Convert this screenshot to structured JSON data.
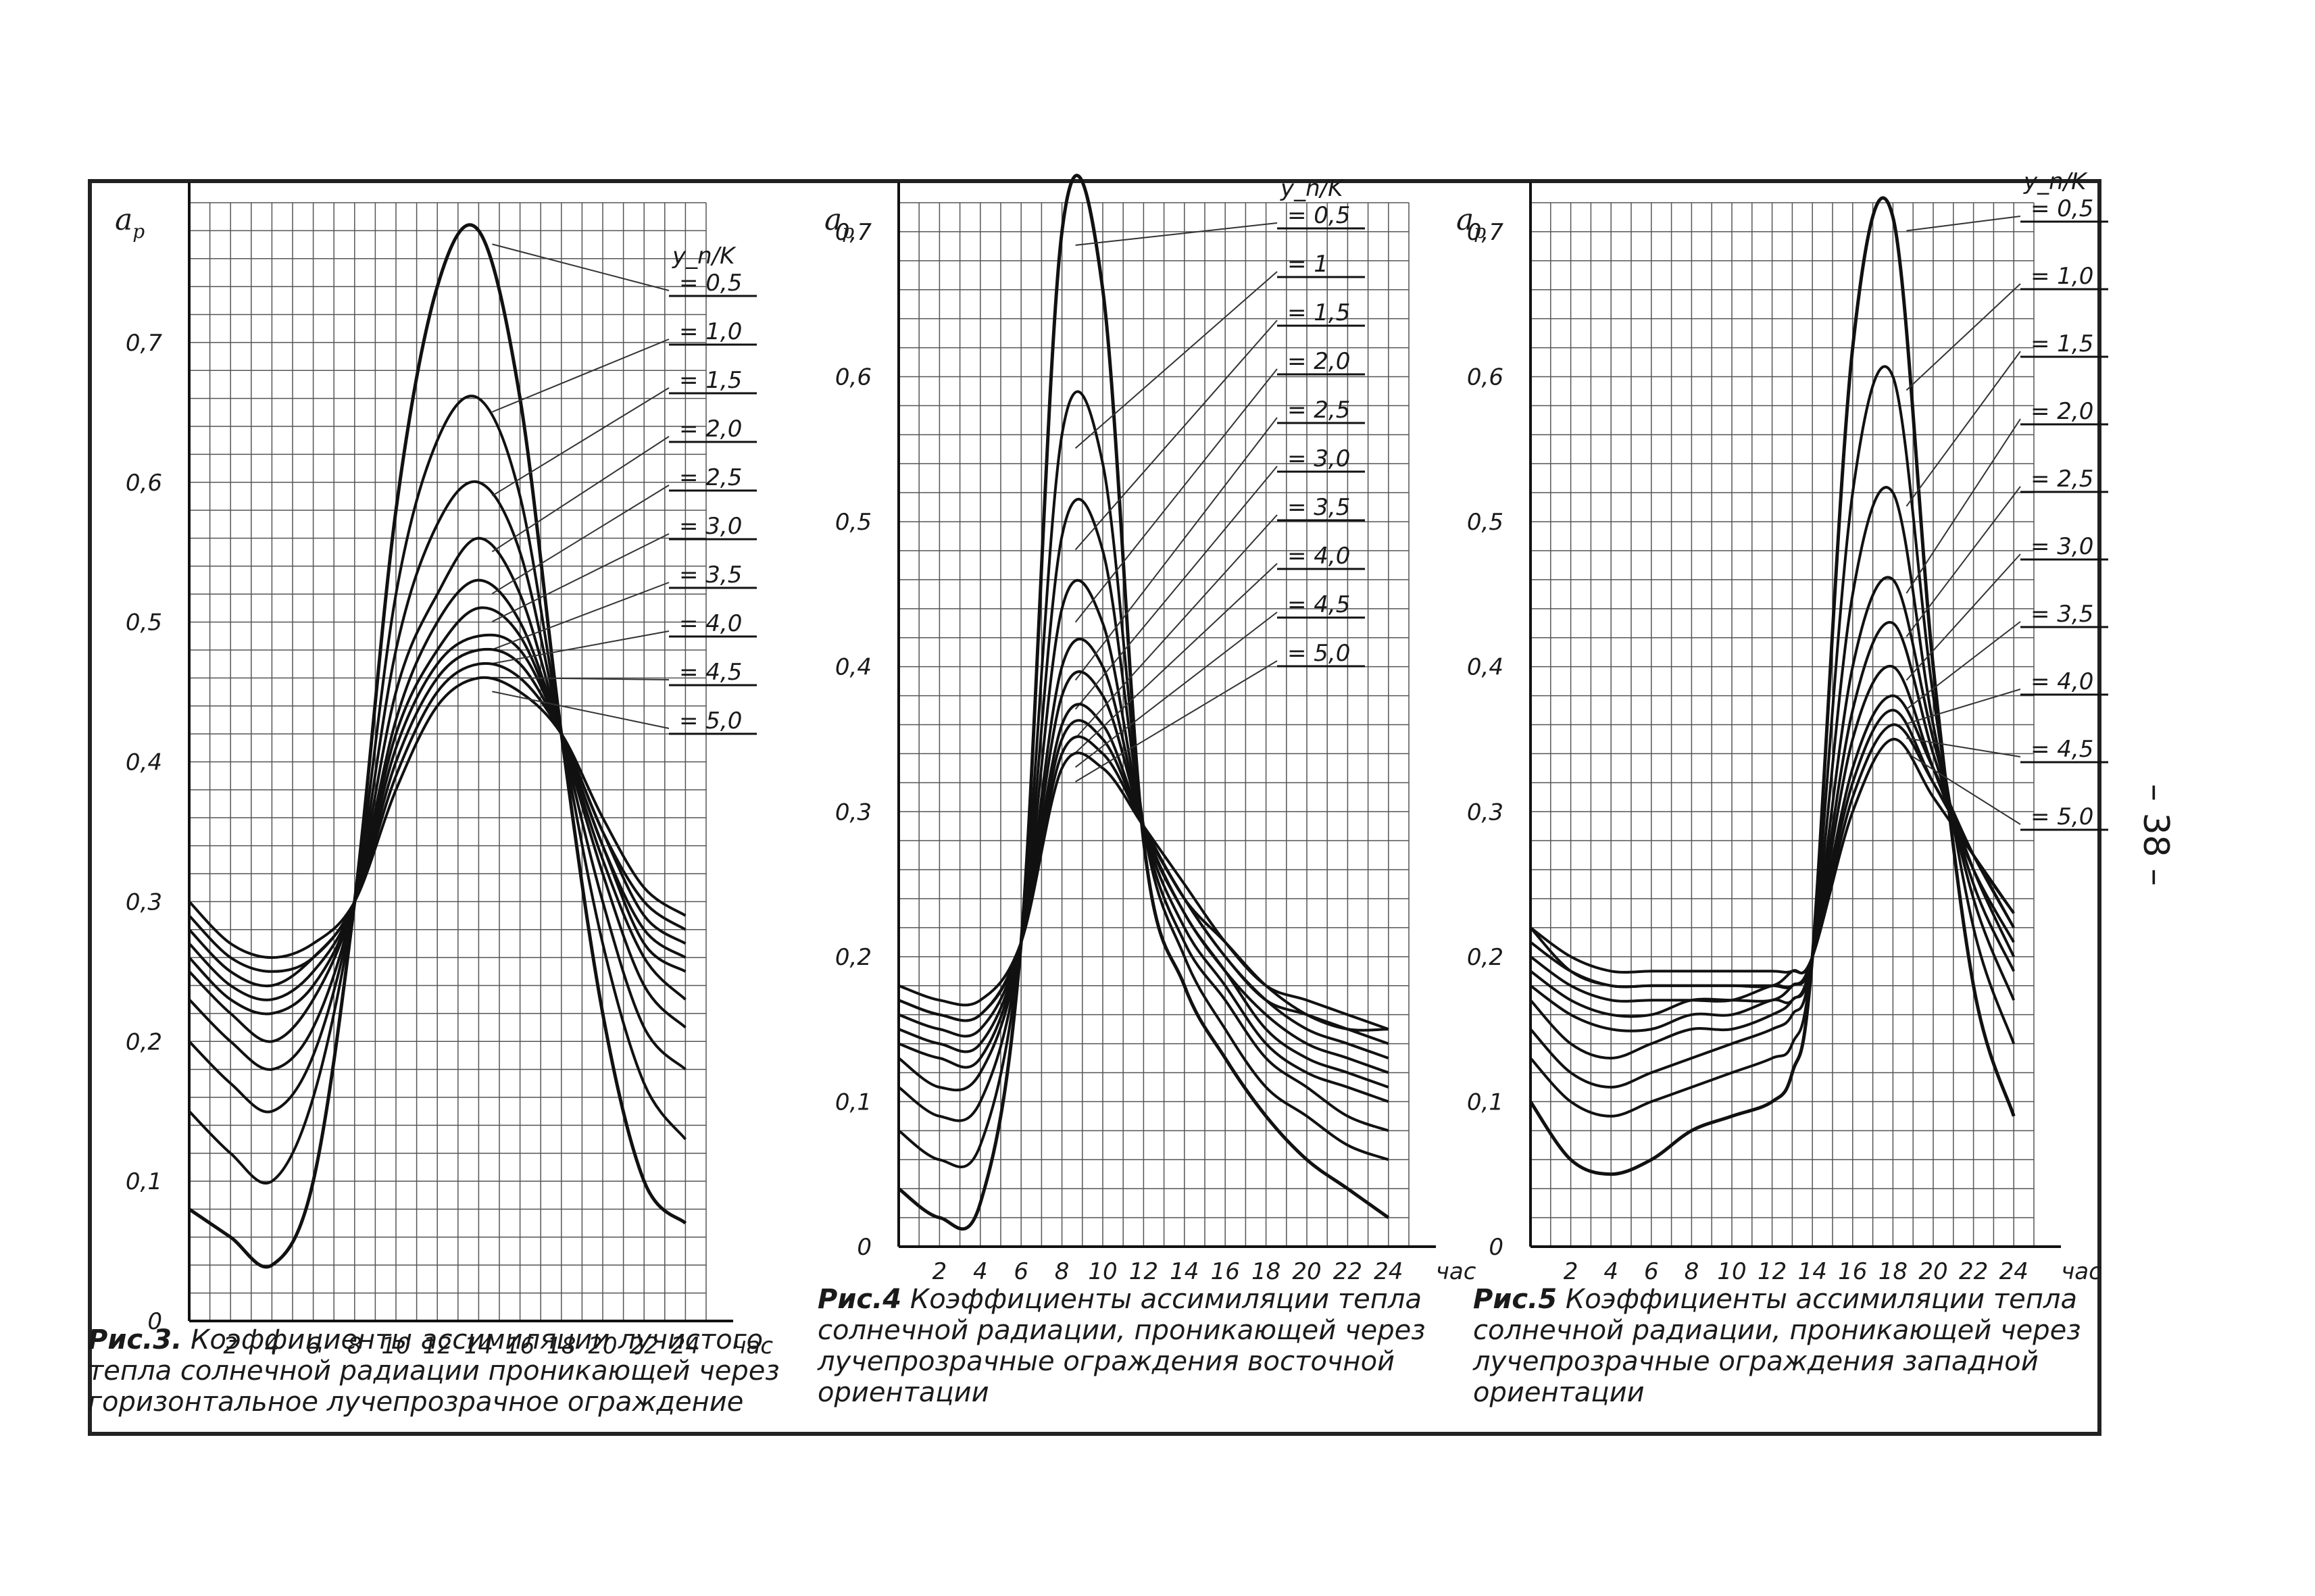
{
  "page_number": "– 38 –",
  "chart_data": [
    {
      "type": "line",
      "figure_label": "Рис.3.",
      "caption": "Коэффициенты ассимиляции лучистого тепла солнечной радиации проникающей через горизонтальное лучепрозрачное ограждение",
      "ylabel": "a_p",
      "xlabel": "час",
      "ylim": [
        0,
        0.8
      ],
      "xlim": [
        0,
        25
      ],
      "xticks": [
        2,
        4,
        6,
        8,
        10,
        12,
        14,
        16,
        18,
        20,
        22,
        24
      ],
      "yticks": [
        0,
        0.1,
        0.2,
        0.3,
        0.4,
        0.5,
        0.6,
        0.7
      ],
      "legend_header": "y_n/K",
      "legend_values": [
        "= 0.5",
        "= 1.0",
        "= 1.5",
        "= 2.0",
        "= 2.5",
        "= 3.0",
        "= 3.5",
        "= 4.0",
        "= 4.5",
        "= 5.0"
      ],
      "x": [
        0,
        2,
        4,
        6,
        8,
        10,
        12,
        14,
        16,
        18,
        20,
        22,
        24
      ],
      "series": [
        {
          "name": "0.5",
          "values": [
            0.08,
            0.06,
            0.04,
            0.1,
            0.3,
            0.58,
            0.74,
            0.78,
            0.66,
            0.42,
            0.22,
            0.1,
            0.07
          ]
        },
        {
          "name": "1.0",
          "values": [
            0.15,
            0.12,
            0.1,
            0.16,
            0.3,
            0.52,
            0.63,
            0.66,
            0.59,
            0.42,
            0.27,
            0.17,
            0.13
          ]
        },
        {
          "name": "1.5",
          "values": [
            0.2,
            0.17,
            0.15,
            0.19,
            0.3,
            0.48,
            0.57,
            0.6,
            0.55,
            0.42,
            0.3,
            0.21,
            0.18
          ]
        },
        {
          "name": "2.0",
          "values": [
            0.23,
            0.2,
            0.18,
            0.21,
            0.3,
            0.45,
            0.52,
            0.56,
            0.52,
            0.42,
            0.32,
            0.24,
            0.21
          ]
        },
        {
          "name": "2.5",
          "values": [
            0.25,
            0.22,
            0.2,
            0.23,
            0.3,
            0.43,
            0.5,
            0.53,
            0.5,
            0.42,
            0.33,
            0.26,
            0.23
          ]
        },
        {
          "name": "3.0",
          "values": [
            0.26,
            0.23,
            0.22,
            0.24,
            0.3,
            0.42,
            0.48,
            0.51,
            0.49,
            0.42,
            0.34,
            0.27,
            0.25
          ]
        },
        {
          "name": "3.5",
          "values": [
            0.27,
            0.24,
            0.23,
            0.25,
            0.3,
            0.41,
            0.47,
            0.49,
            0.48,
            0.42,
            0.34,
            0.28,
            0.26
          ]
        },
        {
          "name": "4.0",
          "values": [
            0.28,
            0.25,
            0.24,
            0.26,
            0.3,
            0.4,
            0.46,
            0.48,
            0.47,
            0.42,
            0.35,
            0.29,
            0.27
          ]
        },
        {
          "name": "4.5",
          "values": [
            0.29,
            0.26,
            0.25,
            0.26,
            0.3,
            0.39,
            0.45,
            0.47,
            0.46,
            0.42,
            0.35,
            0.3,
            0.28
          ]
        },
        {
          "name": "5.0",
          "values": [
            0.3,
            0.27,
            0.26,
            0.27,
            0.3,
            0.38,
            0.44,
            0.46,
            0.45,
            0.42,
            0.36,
            0.31,
            0.29
          ]
        }
      ]
    },
    {
      "type": "line",
      "figure_label": "Рис.4",
      "caption": "Коэффициенты ассимиляции тепла солнечной радиации, проникающей через лучепрозрачные ограждения восточной ориентации",
      "ylabel": "a_p",
      "xlabel": "час",
      "ylim": [
        0,
        0.72
      ],
      "xlim": [
        0,
        25
      ],
      "xticks": [
        2,
        4,
        6,
        8,
        10,
        12,
        14,
        16,
        18,
        20,
        22,
        24
      ],
      "yticks": [
        0,
        0.1,
        0.2,
        0.3,
        0.4,
        0.5,
        0.6,
        0.7
      ],
      "legend_header": "y_n/K",
      "legend_values": [
        "= 0.5",
        "= 1",
        "= 1.5",
        "= 2.0",
        "= 2.5",
        "= 3.0",
        "= 3.5",
        "= 4.0",
        "= 4.5",
        "= 5.0"
      ],
      "x": [
        0,
        2,
        4,
        6,
        8,
        10,
        12,
        14,
        16,
        18,
        20,
        22,
        24
      ],
      "series": [
        {
          "name": "0.5",
          "values": [
            0.04,
            0.02,
            0.03,
            0.21,
            0.7,
            0.66,
            0.28,
            0.18,
            0.13,
            0.09,
            0.06,
            0.04,
            0.02
          ]
        },
        {
          "name": "1",
          "values": [
            0.08,
            0.06,
            0.07,
            0.21,
            0.56,
            0.54,
            0.29,
            0.2,
            0.15,
            0.11,
            0.09,
            0.07,
            0.06
          ]
        },
        {
          "name": "1.5",
          "values": [
            0.11,
            0.09,
            0.1,
            0.21,
            0.49,
            0.48,
            0.29,
            0.21,
            0.17,
            0.13,
            0.11,
            0.09,
            0.08
          ]
        },
        {
          "name": "2.0",
          "values": [
            0.13,
            0.11,
            0.12,
            0.21,
            0.44,
            0.43,
            0.29,
            0.22,
            0.18,
            0.14,
            0.12,
            0.11,
            0.1
          ]
        },
        {
          "name": "2.5",
          "values": [
            0.14,
            0.13,
            0.13,
            0.21,
            0.4,
            0.4,
            0.29,
            0.23,
            0.19,
            0.15,
            0.13,
            0.12,
            0.11
          ]
        },
        {
          "name": "3.0",
          "values": [
            0.15,
            0.14,
            0.14,
            0.21,
            0.38,
            0.38,
            0.29,
            0.23,
            0.19,
            0.16,
            0.14,
            0.13,
            0.12
          ]
        },
        {
          "name": "3.5",
          "values": [
            0.16,
            0.15,
            0.15,
            0.21,
            0.36,
            0.36,
            0.29,
            0.24,
            0.2,
            0.17,
            0.15,
            0.14,
            0.13
          ]
        },
        {
          "name": "4.0",
          "values": [
            0.17,
            0.16,
            0.16,
            0.21,
            0.35,
            0.35,
            0.29,
            0.24,
            0.2,
            0.17,
            0.16,
            0.15,
            0.14
          ]
        },
        {
          "name": "4.5",
          "values": [
            0.17,
            0.16,
            0.16,
            0.21,
            0.34,
            0.34,
            0.29,
            0.24,
            0.21,
            0.18,
            0.16,
            0.15,
            0.15
          ]
        },
        {
          "name": "5.0",
          "values": [
            0.18,
            0.17,
            0.17,
            0.21,
            0.33,
            0.33,
            0.29,
            0.25,
            0.21,
            0.18,
            0.17,
            0.16,
            0.15
          ]
        }
      ]
    },
    {
      "type": "line",
      "figure_label": "Рис.5",
      "caption": "Коэффициенты ассимиляции тепла солнечной радиации, проникающей через лучепрозрачные ограждения западной ориентации",
      "ylabel": "a_p",
      "xlabel": "час",
      "ylim": [
        0,
        0.72
      ],
      "xlim": [
        0,
        25
      ],
      "xticks": [
        2,
        4,
        6,
        8,
        10,
        12,
        14,
        16,
        18,
        20,
        22,
        24
      ],
      "yticks": [
        0,
        0.1,
        0.2,
        0.3,
        0.4,
        0.5,
        0.6,
        0.7
      ],
      "legend_header": "y_n/K",
      "legend_values": [
        "= 0.5",
        "= 1.0",
        "= 1.5",
        "= 2.0",
        "= 2.5",
        "= 3.0",
        "= 3.5",
        "= 4.0",
        "= 4.5",
        "= 5.0"
      ],
      "x": [
        0,
        2,
        4,
        6,
        8,
        10,
        12,
        13,
        14,
        16,
        18,
        20,
        22,
        24
      ],
      "series": [
        {
          "name": "0.5",
          "values": [
            0.1,
            0.06,
            0.05,
            0.06,
            0.08,
            0.09,
            0.1,
            0.12,
            0.2,
            0.62,
            0.71,
            0.4,
            0.18,
            0.09
          ]
        },
        {
          "name": "1.0",
          "values": [
            0.13,
            0.1,
            0.09,
            0.1,
            0.11,
            0.12,
            0.13,
            0.14,
            0.2,
            0.52,
            0.6,
            0.38,
            0.22,
            0.14
          ]
        },
        {
          "name": "1.5",
          "values": [
            0.15,
            0.12,
            0.11,
            0.12,
            0.13,
            0.14,
            0.15,
            0.16,
            0.2,
            0.45,
            0.52,
            0.36,
            0.24,
            0.17
          ]
        },
        {
          "name": "2.0",
          "values": [
            0.17,
            0.14,
            0.13,
            0.14,
            0.15,
            0.15,
            0.16,
            0.17,
            0.2,
            0.4,
            0.46,
            0.35,
            0.25,
            0.19
          ]
        },
        {
          "name": "2.5",
          "values": [
            0.18,
            0.16,
            0.15,
            0.15,
            0.16,
            0.16,
            0.17,
            0.17,
            0.2,
            0.37,
            0.43,
            0.34,
            0.26,
            0.2
          ]
        },
        {
          "name": "3.0",
          "values": [
            0.19,
            0.17,
            0.16,
            0.16,
            0.17,
            0.17,
            0.17,
            0.18,
            0.2,
            0.35,
            0.4,
            0.33,
            0.26,
            0.21
          ]
        },
        {
          "name": "3.5",
          "values": [
            0.2,
            0.18,
            0.17,
            0.17,
            0.17,
            0.17,
            0.18,
            0.18,
            0.2,
            0.33,
            0.38,
            0.33,
            0.27,
            0.22
          ]
        },
        {
          "name": "4.0",
          "values": [
            0.21,
            0.19,
            0.18,
            0.18,
            0.18,
            0.18,
            0.18,
            0.18,
            0.2,
            0.32,
            0.37,
            0.32,
            0.27,
            0.22
          ]
        },
        {
          "name": "4.5",
          "values": [
            0.22,
            0.19,
            0.18,
            0.18,
            0.18,
            0.18,
            0.18,
            0.19,
            0.2,
            0.31,
            0.36,
            0.32,
            0.27,
            0.23
          ]
        },
        {
          "name": "5.0",
          "values": [
            0.22,
            0.2,
            0.19,
            0.19,
            0.19,
            0.19,
            0.19,
            0.19,
            0.2,
            0.3,
            0.35,
            0.31,
            0.27,
            0.23
          ]
        }
      ]
    }
  ]
}
